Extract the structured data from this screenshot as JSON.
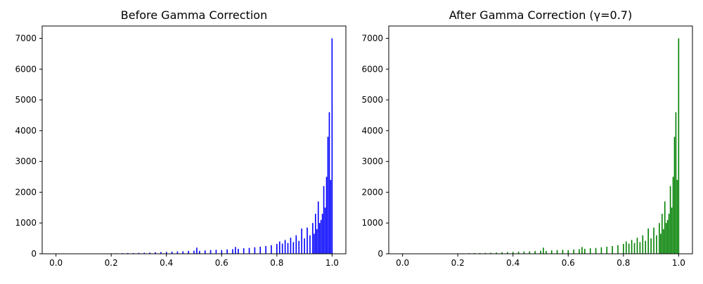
{
  "chart_data": [
    {
      "type": "bar",
      "title": "Before Gamma Correction",
      "xlabel": "",
      "ylabel": "",
      "xlim": [
        -0.05,
        1.05
      ],
      "ylim": [
        0,
        7400
      ],
      "xticks": [
        "0.0",
        "0.2",
        "0.4",
        "0.6",
        "0.8",
        "1.0"
      ],
      "yticks": [
        "0",
        "1000",
        "2000",
        "3000",
        "4000",
        "5000",
        "6000",
        "7000"
      ],
      "color": "#0000ff",
      "grid": false,
      "series": [
        {
          "x": [
            0.2,
            0.22,
            0.24,
            0.26,
            0.28,
            0.3,
            0.32,
            0.34,
            0.36,
            0.38,
            0.4,
            0.42,
            0.44,
            0.46,
            0.48,
            0.5,
            0.51,
            0.52,
            0.54,
            0.56,
            0.58,
            0.6,
            0.62,
            0.64,
            0.65,
            0.66,
            0.68,
            0.7,
            0.72,
            0.74,
            0.76,
            0.78,
            0.8,
            0.81,
            0.82,
            0.83,
            0.84,
            0.85,
            0.86,
            0.87,
            0.88,
            0.89,
            0.9,
            0.91,
            0.92,
            0.93,
            0.935,
            0.94,
            0.945,
            0.95,
            0.955,
            0.96,
            0.965,
            0.97,
            0.975,
            0.98,
            0.985,
            0.99,
            0.995,
            1.0
          ],
          "values": [
            10,
            15,
            20,
            25,
            25,
            30,
            35,
            40,
            50,
            55,
            60,
            70,
            75,
            80,
            90,
            100,
            200,
            90,
            110,
            120,
            130,
            120,
            140,
            150,
            220,
            160,
            180,
            190,
            210,
            230,
            250,
            280,
            320,
            400,
            330,
            450,
            350,
            520,
            380,
            600,
            420,
            820,
            500,
            850,
            600,
            1000,
            650,
            1300,
            800,
            1700,
            1000,
            1100,
            1300,
            2200,
            1500,
            2500,
            3800,
            4600,
            2400,
            7000
          ]
        }
      ]
    },
    {
      "type": "bar",
      "title": "After Gamma Correction (γ=0.7)",
      "xlabel": "",
      "ylabel": "",
      "xlim": [
        -0.05,
        1.05
      ],
      "ylim": [
        0,
        7400
      ],
      "xticks": [
        "0.0",
        "0.2",
        "0.4",
        "0.6",
        "0.8",
        "1.0"
      ],
      "yticks": [
        "0",
        "1000",
        "2000",
        "3000",
        "4000",
        "5000",
        "6000",
        "7000"
      ],
      "color": "#008000",
      "grid": false,
      "series": [
        {
          "x": [
            0.2,
            0.22,
            0.24,
            0.26,
            0.28,
            0.3,
            0.32,
            0.34,
            0.36,
            0.38,
            0.4,
            0.42,
            0.44,
            0.46,
            0.48,
            0.5,
            0.51,
            0.52,
            0.54,
            0.56,
            0.58,
            0.6,
            0.62,
            0.64,
            0.65,
            0.66,
            0.68,
            0.7,
            0.72,
            0.74,
            0.76,
            0.78,
            0.8,
            0.81,
            0.82,
            0.83,
            0.84,
            0.85,
            0.86,
            0.87,
            0.88,
            0.89,
            0.9,
            0.91,
            0.92,
            0.93,
            0.935,
            0.94,
            0.945,
            0.95,
            0.955,
            0.96,
            0.965,
            0.97,
            0.975,
            0.98,
            0.985,
            0.99,
            0.995,
            1.0
          ],
          "values": [
            10,
            15,
            20,
            25,
            25,
            30,
            35,
            40,
            50,
            55,
            60,
            70,
            75,
            80,
            90,
            100,
            200,
            90,
            110,
            120,
            130,
            120,
            140,
            150,
            220,
            160,
            180,
            190,
            210,
            230,
            250,
            280,
            320,
            400,
            330,
            450,
            350,
            520,
            380,
            600,
            420,
            820,
            500,
            850,
            600,
            1000,
            650,
            1300,
            800,
            1700,
            1000,
            1100,
            1300,
            2200,
            1500,
            2500,
            3800,
            4600,
            2400,
            7000
          ]
        }
      ]
    }
  ]
}
